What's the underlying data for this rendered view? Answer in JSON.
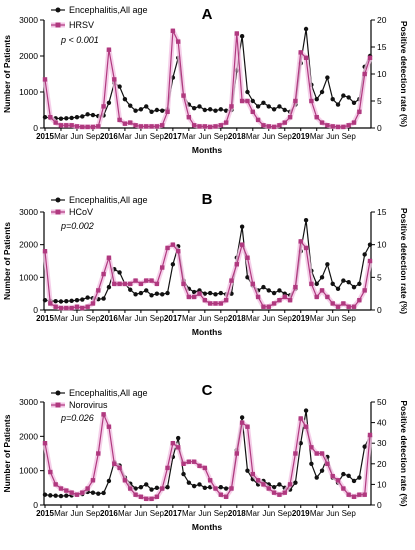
{
  "figure": {
    "colors": {
      "encephalitis": "#111111",
      "virus": "#b0397f",
      "virus_glow": "#f2c3e4"
    }
  },
  "chart_data": [
    {
      "type": "line",
      "panel_label": "A",
      "xlabel": "Months",
      "ylabel": "Number of Patients",
      "y2label": "Positive detection rate (%)",
      "ylim": [
        0,
        3000
      ],
      "y2lim": [
        0,
        20
      ],
      "yticks": [
        0,
        1000,
        2000,
        3000
      ],
      "y2ticks": [
        0,
        5,
        10,
        15,
        20
      ],
      "p_value": "p < 0.001",
      "legend": [
        "Encephalitis,All age",
        "HRSV"
      ],
      "xticks": [
        "2015",
        "Mar",
        "Jun",
        "Sep",
        "2016",
        "Mar",
        "Jun",
        "Sep",
        "2017",
        "Mar",
        "Jun",
        "Sep",
        "2018",
        "Mar",
        "Jun",
        "Sep",
        "2019",
        "Mar",
        "Jun",
        "Sep"
      ],
      "series": [
        {
          "name": "Encephalitis,All age",
          "axis": "left",
          "values": [
            300,
            280,
            270,
            260,
            270,
            280,
            300,
            320,
            380,
            360,
            330,
            350,
            700,
            1250,
            1150,
            800,
            620,
            480,
            520,
            600,
            450,
            500,
            480,
            520,
            1400,
            1950,
            900,
            650,
            550,
            600,
            500,
            520,
            480,
            520,
            480,
            500,
            1600,
            2550,
            1000,
            750,
            600,
            700,
            600,
            520,
            600,
            500,
            450,
            650,
            1800,
            2750,
            1200,
            800,
            1000,
            1400,
            800,
            650,
            900,
            850,
            700,
            800,
            1700,
            2000
          ]
        },
        {
          "name": "HRSV",
          "axis": "right",
          "values": [
            9,
            2,
            1,
            0.5,
            0.5,
            0.5,
            0.3,
            0.2,
            0.2,
            0.2,
            0.3,
            4,
            14.5,
            9,
            1.5,
            0.8,
            1,
            0.5,
            0.3,
            0.3,
            0.3,
            0.3,
            0.5,
            3,
            18,
            16,
            6,
            2,
            0.5,
            0.3,
            0.3,
            0.2,
            0.3,
            0.5,
            1,
            4,
            17.5,
            5,
            5,
            3,
            1.5,
            0.5,
            0.3,
            0.2,
            0.5,
            1,
            2,
            5,
            14,
            13,
            5,
            2,
            1,
            0.5,
            0.3,
            0.2,
            0.2,
            0.5,
            1,
            3,
            10,
            13
          ]
        }
      ]
    },
    {
      "type": "line",
      "panel_label": "B",
      "xlabel": "Months",
      "ylabel": "Number of Patients",
      "y2label": "Positive detection rate (%)",
      "ylim": [
        0,
        3000
      ],
      "y2lim": [
        0,
        15
      ],
      "yticks": [
        0,
        1000,
        2000,
        3000
      ],
      "y2ticks": [
        0,
        5,
        10,
        15
      ],
      "p_value": "p=0.002",
      "legend": [
        "Encephalitis,All age",
        "HCoV"
      ],
      "xticks": [
        "2015",
        "Mar",
        "Jun",
        "Sep",
        "2016",
        "Mar",
        "Jun",
        "Sep",
        "2017",
        "Mar",
        "Jun",
        "Sep",
        "2018",
        "Mar",
        "Jun",
        "Sep",
        "2019",
        "Mar",
        "Jun",
        "Sep"
      ],
      "series": [
        {
          "name": "Encephalitis,All age",
          "axis": "left",
          "values": [
            300,
            280,
            270,
            260,
            270,
            280,
            300,
            320,
            380,
            360,
            330,
            350,
            700,
            1250,
            1150,
            800,
            620,
            480,
            520,
            600,
            450,
            500,
            480,
            520,
            1400,
            1950,
            900,
            650,
            550,
            600,
            500,
            520,
            480,
            520,
            480,
            500,
            1600,
            2550,
            1000,
            750,
            600,
            700,
            600,
            520,
            600,
            500,
            450,
            650,
            1800,
            2750,
            1200,
            800,
            1000,
            1400,
            800,
            650,
            900,
            850,
            700,
            800,
            1700,
            2000
          ]
        },
        {
          "name": "HCoV",
          "axis": "right",
          "values": [
            9,
            1,
            0.5,
            0.3,
            0.3,
            0.3,
            0.5,
            0.3,
            0.5,
            1,
            3,
            5.5,
            8,
            4,
            4,
            4,
            4,
            4.5,
            4,
            4.5,
            4.5,
            4,
            6.5,
            9.5,
            10,
            9,
            4,
            2,
            2,
            2.5,
            1.5,
            1,
            1,
            1,
            1.5,
            4.5,
            7,
            10,
            8,
            4,
            2,
            0.5,
            0.5,
            1,
            1.5,
            2,
            1.5,
            3.5,
            10.5,
            9.5,
            4,
            2,
            3,
            2,
            1,
            0.5,
            1,
            0.5,
            0.5,
            1.5,
            3,
            7.5
          ]
        }
      ]
    },
    {
      "type": "line",
      "panel_label": "C",
      "xlabel": "Months",
      "ylabel": "Number of Patients",
      "y2label": "Positive detection rate (%)",
      "ylim": [
        0,
        3000
      ],
      "y2lim": [
        0,
        50
      ],
      "yticks": [
        0,
        1000,
        2000,
        3000
      ],
      "y2ticks": [
        0,
        10,
        20,
        30,
        40,
        50
      ],
      "p_value": "p=0.026",
      "legend": [
        "Encephalitis,All age",
        "Norovirus"
      ],
      "xticks": [
        "2015",
        "Mar",
        "Jun",
        "Sep",
        "2016",
        "Mar",
        "Jun",
        "Sep",
        "2017",
        "Mar",
        "Jun",
        "Sep",
        "2018",
        "Mar",
        "Jun",
        "Sep",
        "2019",
        "Mar",
        "Jun",
        "Sep"
      ],
      "series": [
        {
          "name": "Encephalitis,All age",
          "axis": "left",
          "values": [
            300,
            280,
            270,
            260,
            270,
            280,
            300,
            320,
            380,
            360,
            330,
            350,
            700,
            1250,
            1150,
            800,
            620,
            480,
            520,
            600,
            450,
            500,
            480,
            520,
            1400,
            1950,
            900,
            650,
            550,
            600,
            500,
            520,
            480,
            520,
            480,
            500,
            1600,
            2550,
            1000,
            750,
            600,
            700,
            600,
            520,
            600,
            500,
            450,
            650,
            1800,
            2750,
            1200,
            800,
            1000,
            1400,
            800,
            650,
            900,
            850,
            700,
            800,
            1700,
            2000
          ]
        },
        {
          "name": "Norovirus",
          "axis": "right",
          "values": [
            30,
            16,
            10,
            8,
            7,
            6,
            5,
            6,
            8,
            12,
            25,
            44,
            38,
            20,
            18,
            12,
            8,
            5,
            4,
            3,
            3,
            4,
            8,
            18,
            30,
            28,
            20,
            21,
            21,
            19,
            18,
            12,
            8,
            5,
            4,
            8,
            25,
            40,
            38,
            15,
            12,
            10,
            8,
            6,
            5,
            6,
            10,
            25,
            42,
            38,
            28,
            25,
            25,
            20,
            14,
            12,
            8,
            5,
            4,
            5,
            5,
            34
          ]
        }
      ]
    }
  ]
}
